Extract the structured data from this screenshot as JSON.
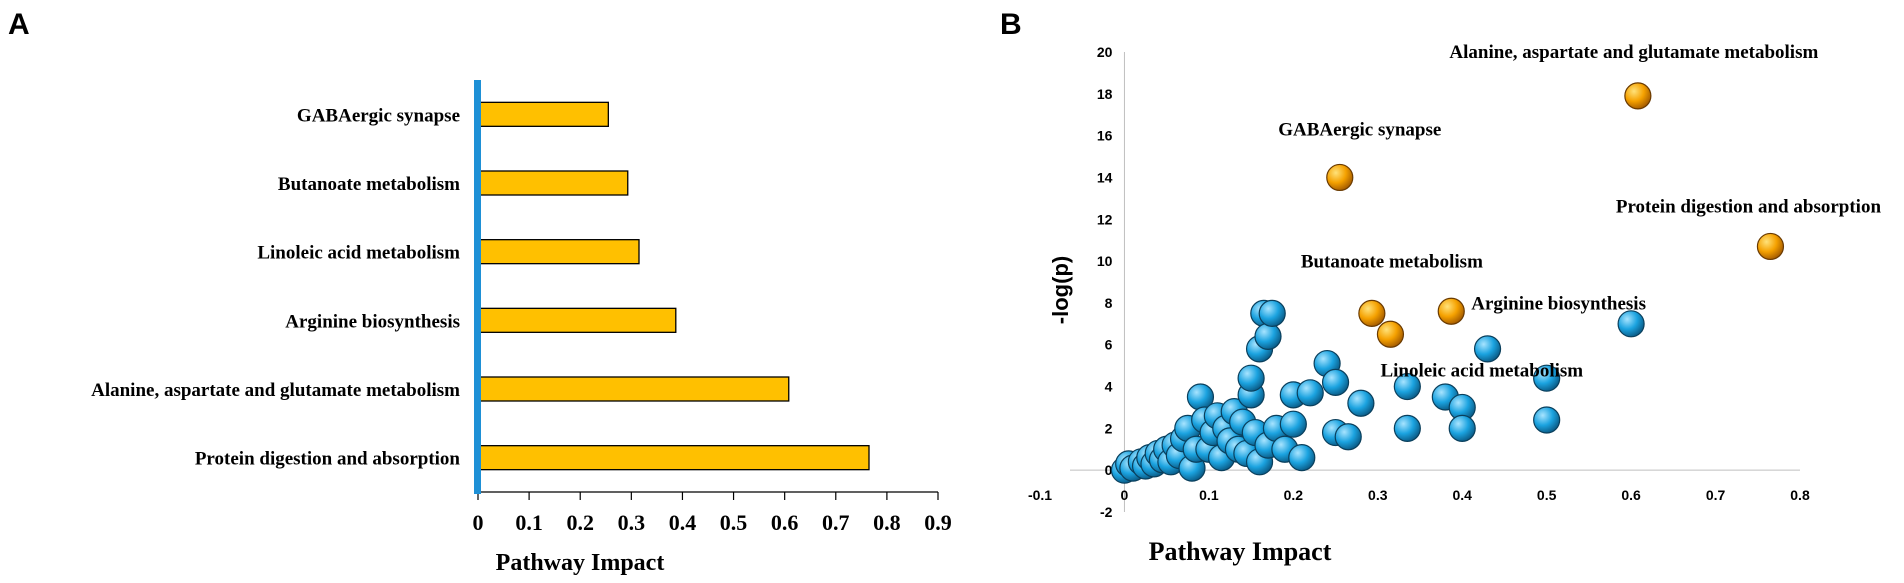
{
  "panel_labels": {
    "a": "A",
    "b": "B"
  },
  "colors": {
    "bar_fill": "#FFC000",
    "bar_stroke": "#000000",
    "axis_blue": "#1E90D6",
    "bubble_blue": "#1BA3E0",
    "bubble_orange": "#F5A100"
  },
  "chart_data": [
    {
      "type": "bar",
      "orientation": "horizontal",
      "title": "",
      "xlabel": "Pathway Impact",
      "ylabel": "",
      "xlim": [
        0,
        0.9
      ],
      "xticks": [
        "0",
        "0.1",
        "0.2",
        "0.3",
        "0.4",
        "0.5",
        "0.6",
        "0.7",
        "0.8",
        "0.9"
      ],
      "categories": [
        "GABAergic synapse",
        "Butanoate metabolism",
        "Linoleic acid metabolism",
        "Arginine biosynthesis",
        "Alanine, aspartate and glutamate metabolism",
        "Protein digestion and absorption"
      ],
      "values": [
        0.255,
        0.293,
        0.315,
        0.387,
        0.608,
        0.765
      ]
    },
    {
      "type": "scatter",
      "title": "",
      "xlabel": "Pathway Impact",
      "ylabel": "-log(p)",
      "xlim": [
        -0.1,
        0.8
      ],
      "ylim": [
        -2,
        20
      ],
      "xticks": [
        "-0.1",
        "0",
        "0.1",
        "0.2",
        "0.3",
        "0.4",
        "0.5",
        "0.6",
        "0.7",
        "0.8"
      ],
      "yticks": [
        "-2",
        "0",
        "2",
        "4",
        "6",
        "8",
        "10",
        "12",
        "14",
        "16",
        "18",
        "20"
      ],
      "highlighted": [
        {
          "name": "Alanine, aspartate and glutamate metabolism",
          "x": 0.608,
          "y": 17.9
        },
        {
          "name": "GABAergic synapse",
          "x": 0.255,
          "y": 14.0
        },
        {
          "name": "Protein digestion and absorption",
          "x": 0.765,
          "y": 10.7
        },
        {
          "name": "Butanoate metabolism",
          "x": 0.293,
          "y": 7.5
        },
        {
          "name": "Arginine biosynthesis",
          "x": 0.387,
          "y": 7.6
        },
        {
          "name": "Linoleic acid metabolism",
          "x": 0.315,
          "y": 6.5
        }
      ],
      "other_points": [
        [
          0.0,
          0.0
        ],
        [
          0.005,
          0.3
        ],
        [
          0.01,
          0.1
        ],
        [
          0.02,
          0.4
        ],
        [
          0.025,
          0.2
        ],
        [
          0.03,
          0.6
        ],
        [
          0.035,
          0.3
        ],
        [
          0.04,
          0.8
        ],
        [
          0.045,
          0.5
        ],
        [
          0.05,
          1.0
        ],
        [
          0.055,
          0.4
        ],
        [
          0.06,
          1.2
        ],
        [
          0.065,
          0.7
        ],
        [
          0.07,
          1.5
        ],
        [
          0.075,
          2.0
        ],
        [
          0.08,
          0.1
        ],
        [
          0.085,
          1.0
        ],
        [
          0.09,
          3.5
        ],
        [
          0.095,
          2.4
        ],
        [
          0.1,
          1.0
        ],
        [
          0.105,
          1.8
        ],
        [
          0.11,
          2.6
        ],
        [
          0.115,
          0.6
        ],
        [
          0.12,
          2.0
        ],
        [
          0.125,
          1.4
        ],
        [
          0.13,
          2.8
        ],
        [
          0.135,
          1.0
        ],
        [
          0.14,
          2.3
        ],
        [
          0.145,
          0.8
        ],
        [
          0.15,
          3.6
        ],
        [
          0.15,
          4.4
        ],
        [
          0.155,
          1.8
        ],
        [
          0.16,
          0.4
        ],
        [
          0.16,
          5.8
        ],
        [
          0.165,
          7.5
        ],
        [
          0.17,
          6.4
        ],
        [
          0.175,
          7.5
        ],
        [
          0.17,
          1.2
        ],
        [
          0.18,
          2.0
        ],
        [
          0.19,
          1.0
        ],
        [
          0.2,
          3.6
        ],
        [
          0.2,
          2.2
        ],
        [
          0.21,
          0.6
        ],
        [
          0.22,
          3.7
        ],
        [
          0.24,
          5.1
        ],
        [
          0.25,
          4.2
        ],
        [
          0.25,
          1.8
        ],
        [
          0.265,
          1.6
        ],
        [
          0.28,
          3.2
        ],
        [
          0.335,
          4.0
        ],
        [
          0.335,
          2.0
        ],
        [
          0.38,
          3.5
        ],
        [
          0.4,
          3.0
        ],
        [
          0.4,
          2.0
        ],
        [
          0.43,
          5.8
        ],
        [
          0.5,
          4.4
        ],
        [
          0.5,
          2.4
        ],
        [
          0.6,
          7.0
        ]
      ]
    }
  ]
}
